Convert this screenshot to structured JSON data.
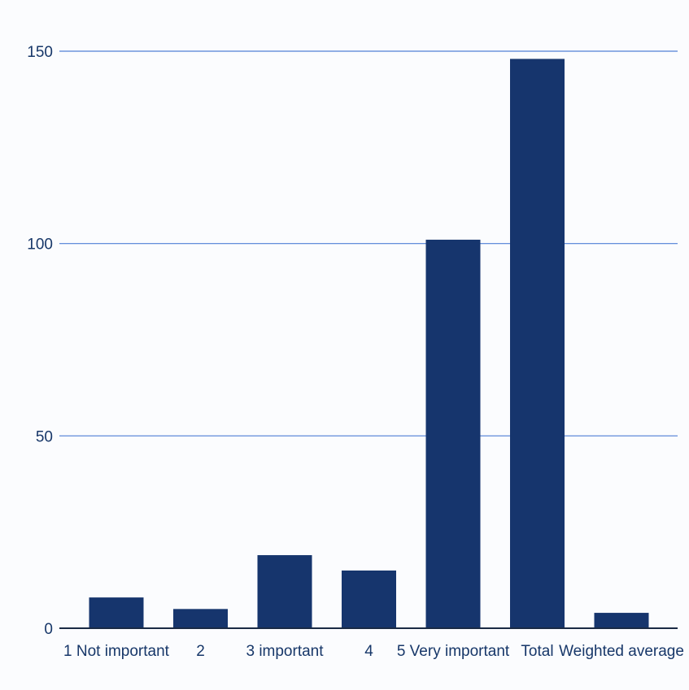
{
  "chart_data": {
    "type": "bar",
    "categories": [
      "1 Not important",
      "2",
      "3 important",
      "4",
      "5 Very important",
      "Total",
      "Weighted average"
    ],
    "values": [
      8,
      5,
      19,
      15,
      101,
      148,
      4
    ],
    "title": "",
    "xlabel": "",
    "ylabel": "",
    "ylim": [
      0,
      150
    ],
    "yticks": [
      0,
      50,
      100,
      150
    ],
    "grid": true,
    "legend": "none",
    "colors": {
      "bar": "#16356d",
      "grid": "#4f7fd6",
      "text": "#173769",
      "background": "#fbfcfe"
    }
  }
}
